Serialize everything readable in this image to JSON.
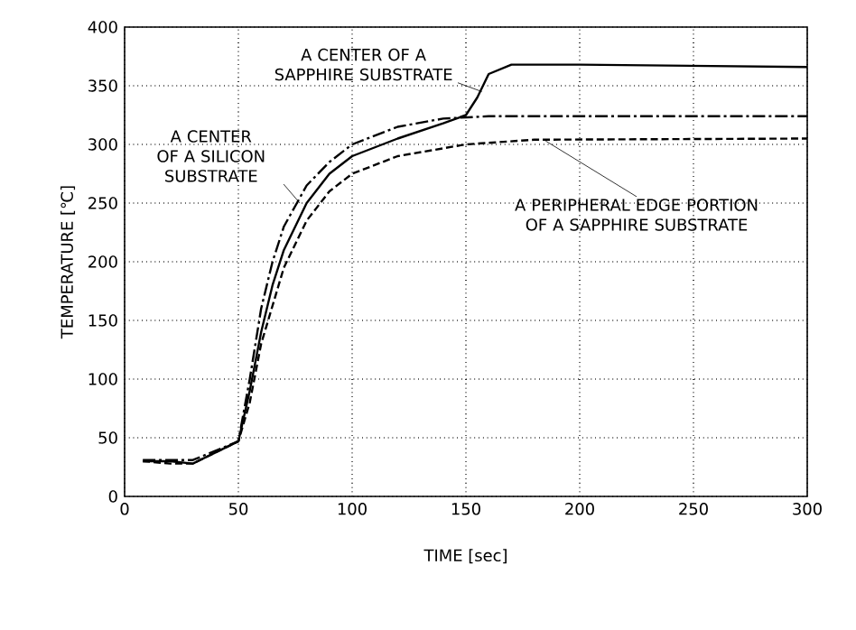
{
  "chart_data": {
    "type": "line",
    "xlabel": "TIME [sec]",
    "ylabel": "TEMPERATURE [℃]",
    "xlim": [
      0,
      300
    ],
    "ylim": [
      0,
      400
    ],
    "xticks": [
      0,
      50,
      100,
      150,
      200,
      250,
      300
    ],
    "yticks": [
      0,
      50,
      100,
      150,
      200,
      250,
      300,
      350,
      400
    ],
    "grid": true,
    "marker": "none",
    "series": [
      {
        "color": "#000000",
        "line_style": "solid",
        "x": [
          8,
          20,
          30,
          50,
          55,
          60,
          65,
          70,
          80,
          90,
          100,
          120,
          140,
          150,
          155,
          160,
          170,
          200,
          300
        ],
        "values": [
          30,
          30,
          28,
          47,
          90,
          140,
          180,
          210,
          250,
          275,
          290,
          305,
          318,
          325,
          340,
          360,
          368,
          368,
          366
        ]
      },
      {
        "color": "#000000",
        "line_style": "dashdot",
        "x": [
          8,
          30,
          50,
          55,
          60,
          65,
          70,
          80,
          90,
          100,
          120,
          140,
          160,
          300
        ],
        "values": [
          31,
          31,
          47,
          100,
          160,
          200,
          230,
          265,
          285,
          300,
          315,
          322,
          324,
          324
        ]
      },
      {
        "color": "#000000",
        "line_style": "dashed",
        "x": [
          8,
          20,
          30,
          50,
          55,
          60,
          70,
          80,
          90,
          100,
          120,
          150,
          180,
          300
        ],
        "values": [
          30,
          28,
          28,
          47,
          80,
          130,
          195,
          235,
          260,
          275,
          290,
          300,
          304,
          305
        ]
      }
    ],
    "annotations": [
      {
        "text": "A CENTER OF A SAPPHIRE SUBSTRATE",
        "x": 157,
        "y": 345
      },
      {
        "text": "A CENTER OF A SILICON SUBSTRATE",
        "x": 77,
        "y": 250
      },
      {
        "text": "A PERIPHERAL EDGE PORTION OF A SAPPHIRE SUBSTRATE",
        "x": 185,
        "y": 303
      }
    ]
  }
}
